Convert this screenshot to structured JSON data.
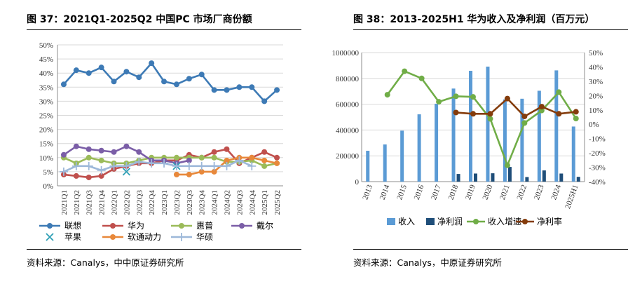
{
  "chart_data": [
    {
      "type": "line",
      "title": "图 37：2021Q1-2025Q2 中国PC 市场厂商份额",
      "source": "资料来源：Canalys，中中原证券研究所",
      "categories": [
        "2021Q1",
        "2021Q2",
        "2021Q3",
        "2021Q4",
        "2022Q1",
        "2022Q2",
        "2022Q3",
        "2022Q4",
        "2023Q1",
        "2023Q2",
        "2023Q3",
        "2023Q4",
        "2024Q1",
        "2024Q2",
        "2024Q3",
        "2024Q4",
        "2025Q1",
        "2025Q2"
      ],
      "ylim": [
        0,
        50
      ],
      "yticks": [
        "0%",
        "5%",
        "10%",
        "15%",
        "20%",
        "25%",
        "30%",
        "35%",
        "40%",
        "45%",
        "50%"
      ],
      "legend_position": "bottom",
      "series": [
        {
          "name": "联想",
          "color": "#3d7ab5",
          "marker": "circle",
          "values": [
            36,
            41,
            40,
            42,
            37,
            40.5,
            38.5,
            43.5,
            37,
            36,
            38,
            39.5,
            34,
            34,
            35,
            35,
            30,
            34
          ]
        },
        {
          "name": "华为",
          "color": "#c0504d",
          "marker": "circle",
          "values": [
            4,
            3.5,
            3,
            3.5,
            6,
            7,
            8,
            8,
            9,
            9,
            11,
            10,
            12,
            13,
            8,
            10,
            12,
            10
          ]
        },
        {
          "name": "惠普",
          "color": "#9bbb59",
          "marker": "circle",
          "values": [
            10,
            8,
            10,
            9,
            8,
            8,
            9,
            10,
            10,
            10,
            10,
            10,
            10,
            8.5,
            8.5,
            9,
            7,
            8
          ]
        },
        {
          "name": "戴尔",
          "color": "#7b5ea7",
          "marker": "circle",
          "values": [
            11,
            14,
            13,
            12.5,
            12,
            14,
            12,
            9,
            9,
            8,
            9,
            null,
            null,
            null,
            null,
            null,
            null,
            null
          ]
        },
        {
          "name": "苹果",
          "color": "#2e9fb5",
          "marker": "x",
          "values": [
            null,
            null,
            null,
            null,
            null,
            5,
            null,
            null,
            null,
            7,
            null,
            null,
            null,
            null,
            null,
            null,
            null,
            null
          ]
        },
        {
          "name": "软通动力",
          "color": "#e8883a",
          "marker": "circle",
          "values": [
            null,
            null,
            null,
            null,
            null,
            null,
            null,
            null,
            null,
            4,
            4,
            5,
            5,
            9,
            10,
            10,
            9,
            8
          ]
        },
        {
          "name": "华硕",
          "color": "#9db8d9",
          "marker": "plus",
          "values": [
            5,
            7,
            7,
            5.5,
            7,
            7,
            8.5,
            8,
            8,
            7,
            7,
            7,
            7,
            7,
            9,
            7,
            null,
            null
          ]
        }
      ]
    },
    {
      "type": "bar",
      "title": "图 38：2013-2025H1 华为收入及净利润（百万元）",
      "source": "资料来源：Canalys，中原证券研究所",
      "categories": [
        "2013",
        "2014",
        "2015",
        "2016",
        "2017",
        "2018",
        "2019",
        "2020",
        "2021",
        "2022",
        "2023",
        "2024",
        "2025H1"
      ],
      "ylim_left": [
        0,
        1000000
      ],
      "yticks_left": [
        "0",
        "200000",
        "400000",
        "600000",
        "800000",
        "1000000"
      ],
      "ylim_right": [
        -40,
        50
      ],
      "yticks_right": [
        "-40%",
        "-30%",
        "-20%",
        "-10%",
        "0%",
        "10%",
        "20%",
        "30%",
        "40%",
        "50%"
      ],
      "legend_position": "bottom",
      "series": [
        {
          "name": "收入",
          "kind": "bar",
          "axis": "left",
          "color": "#5b9bd5",
          "values": [
            239025,
            288197,
            395009,
            521574,
            603621,
            721202,
            858833,
            891368,
            636807,
            642338,
            704174,
            862072,
            427000
          ]
        },
        {
          "name": "净利润",
          "kind": "bar",
          "axis": "left",
          "color": "#1f4e79",
          "values": [
            null,
            null,
            null,
            null,
            null,
            59345,
            62656,
            64649,
            113718,
            35562,
            86950,
            62574,
            37100
          ]
        },
        {
          "name": "收入增速",
          "kind": "line",
          "axis": "right",
          "color": "#70ad47",
          "values": [
            null,
            20.6,
            37,
            32,
            15.7,
            19.5,
            19.1,
            3.8,
            -28.6,
            0.9,
            9.6,
            22.4,
            4
          ]
        },
        {
          "name": "净利率",
          "kind": "line",
          "axis": "right",
          "color": "#843c0c",
          "values": [
            null,
            null,
            null,
            null,
            null,
            8.2,
            7.3,
            7.3,
            17.9,
            5.5,
            12.3,
            7.3,
            8.7
          ]
        }
      ]
    }
  ]
}
